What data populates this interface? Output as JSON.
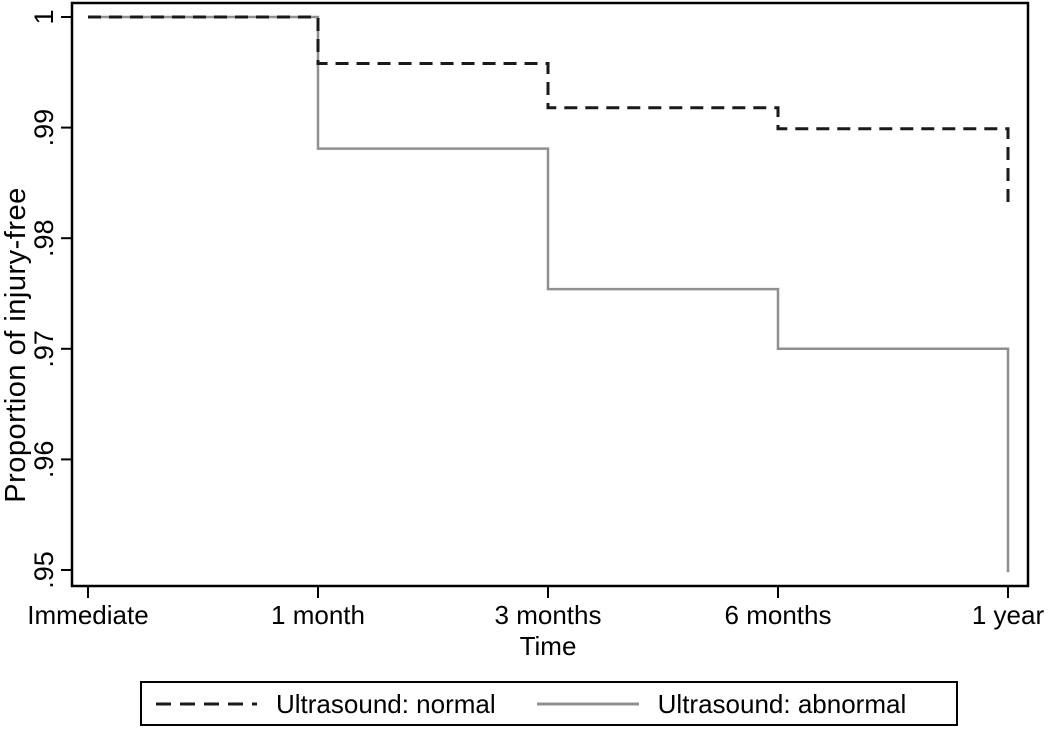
{
  "figure": {
    "background_color": "#ffffff",
    "frame_color": "#000000"
  },
  "chart_data": {
    "type": "line",
    "subtype": "step-survival",
    "title": "",
    "xlabel": "Time",
    "ylabel": "Proportion of injury-free",
    "categories": [
      "Immediate",
      "1 month",
      "3 months",
      "6 months",
      "1 year"
    ],
    "y_ticks": [
      1,
      0.99,
      0.98,
      0.97,
      0.96,
      0.95
    ],
    "y_tick_labels": [
      "1",
      ".99",
      ".98",
      ".97",
      ".96",
      ".95"
    ],
    "ylim": [
      0.9486,
      1.0013
    ],
    "grid": false,
    "legend_position": "bottom",
    "series": [
      {
        "name": "Ultrasound: normal",
        "style": "dashed",
        "color": "#1a1a1a",
        "values": [
          1,
          0.9958,
          0.9918,
          0.9899,
          0.9828
        ]
      },
      {
        "name": "Ultrasound: abnormal",
        "style": "solid",
        "color": "#909090",
        "values": [
          1,
          0.9881,
          0.9754,
          0.97,
          0.9498
        ]
      }
    ]
  }
}
